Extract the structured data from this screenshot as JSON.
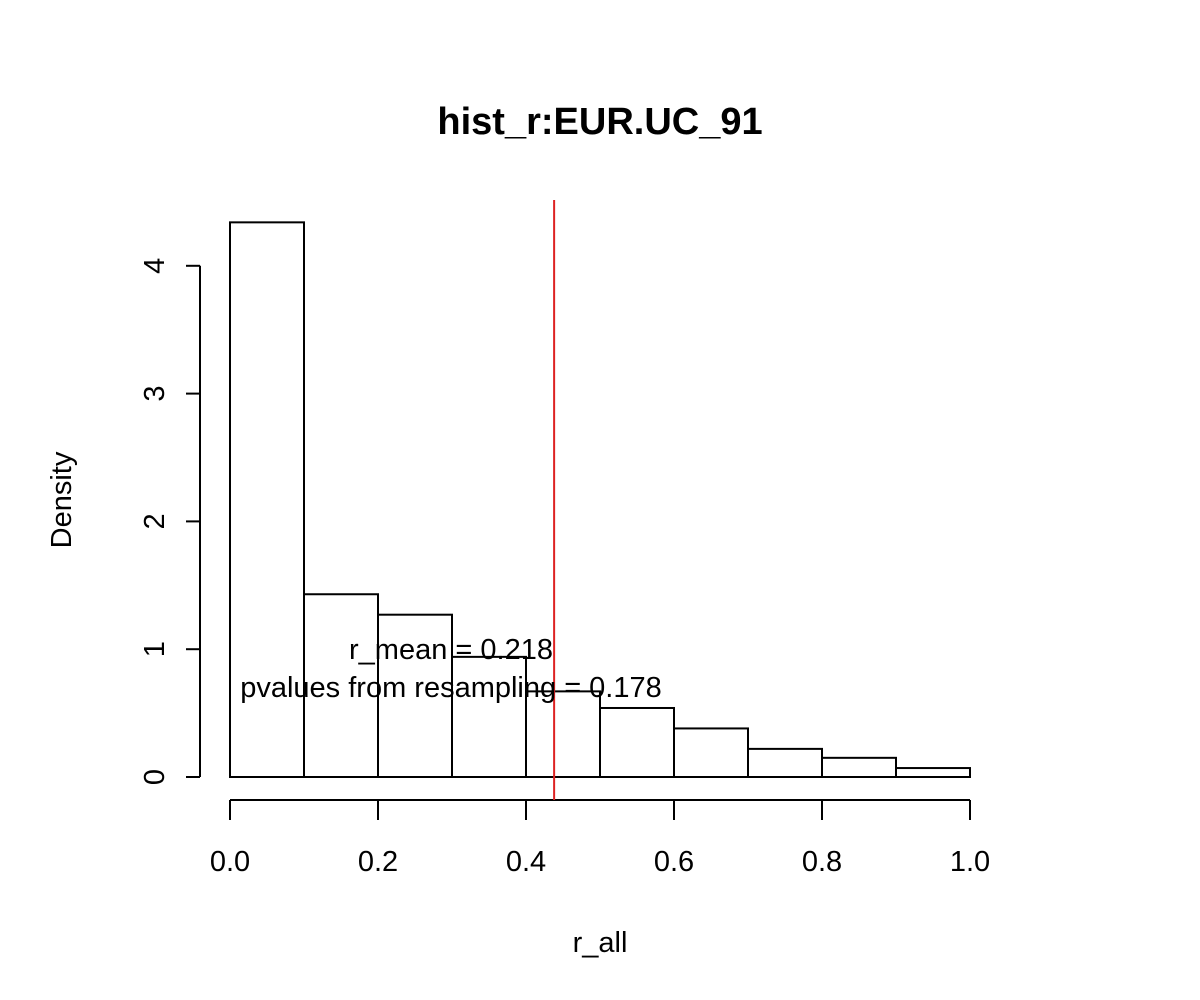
{
  "chart_data": {
    "type": "bar",
    "title": "hist_r:EUR.UC_91",
    "xlabel": "r_all",
    "ylabel": "Density",
    "bins": [
      {
        "from": 0.0,
        "to": 0.1,
        "density": 4.34
      },
      {
        "from": 0.1,
        "to": 0.2,
        "density": 1.43
      },
      {
        "from": 0.2,
        "to": 0.3,
        "density": 1.27
      },
      {
        "from": 0.3,
        "to": 0.4,
        "density": 0.94
      },
      {
        "from": 0.4,
        "to": 0.5,
        "density": 0.67
      },
      {
        "from": 0.5,
        "to": 0.6,
        "density": 0.54
      },
      {
        "from": 0.6,
        "to": 0.7,
        "density": 0.38
      },
      {
        "from": 0.7,
        "to": 0.8,
        "density": 0.22
      },
      {
        "from": 0.8,
        "to": 0.9,
        "density": 0.15
      },
      {
        "from": 0.9,
        "to": 1.0,
        "density": 0.07
      }
    ],
    "xlim": [
      0.0,
      1.0
    ],
    "ylim": [
      0,
      4.5
    ],
    "x_ticks": [
      "0.0",
      "0.2",
      "0.4",
      "0.6",
      "0.8",
      "1.0"
    ],
    "y_ticks": [
      "0",
      "1",
      "2",
      "3",
      "4"
    ],
    "vline": {
      "x": 0.438,
      "color": "#dd2222"
    },
    "annotations": {
      "mean_text": "r_mean = 0.218",
      "pvalue_text": "pvalues from resampling = 0.178"
    },
    "grid": false,
    "bar_fill": "#ffffff",
    "bar_stroke": "#000000"
  }
}
